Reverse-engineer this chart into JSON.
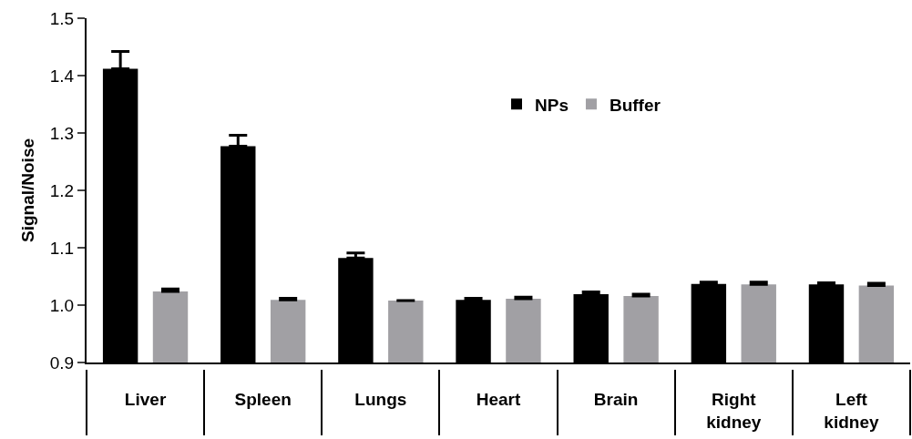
{
  "chart_data": {
    "type": "bar",
    "ylabel": "Signal/Noise",
    "categories": [
      "Liver",
      "Spleen",
      "Lungs",
      "Heart",
      "Brain",
      "Right\nkidney",
      "Left\nkidney"
    ],
    "series": [
      {
        "name": "NPs",
        "color": "#000000",
        "values": [
          1.412,
          1.277,
          1.082,
          1.009,
          1.019,
          1.037,
          1.036
        ],
        "errors": [
          [
            1.412,
            1.442
          ],
          [
            1.277,
            1.296
          ],
          [
            1.082,
            1.091
          ],
          [
            1.009,
            1.012
          ],
          [
            1.019,
            1.023
          ],
          [
            1.037,
            1.04
          ],
          [
            1.036,
            1.039
          ]
        ]
      },
      {
        "name": "Buffer",
        "color": "#a1a0a4",
        "values": [
          1.024,
          1.009,
          1.008,
          1.011,
          1.016,
          1.036,
          1.034
        ],
        "errors": [
          [
            1.024,
            1.028
          ],
          [
            1.009,
            1.012
          ],
          null,
          [
            1.011,
            1.014
          ],
          [
            1.016,
            1.019
          ],
          [
            1.036,
            1.04
          ],
          [
            1.034,
            1.038
          ]
        ]
      }
    ],
    "ylim": [
      0.9,
      1.5
    ],
    "yticks": [
      {
        "value": 0.9,
        "label": "0.9"
      },
      {
        "value": 1.0,
        "label": "1.0"
      },
      {
        "value": 1.1,
        "label": "1.1"
      },
      {
        "value": 1.2,
        "label": "1.2"
      },
      {
        "value": 1.3,
        "label": "1.3"
      },
      {
        "value": 1.4,
        "label": "1.4"
      },
      {
        "value": 1.5,
        "label": "1.5"
      }
    ],
    "grid": false,
    "legend": "top right"
  }
}
